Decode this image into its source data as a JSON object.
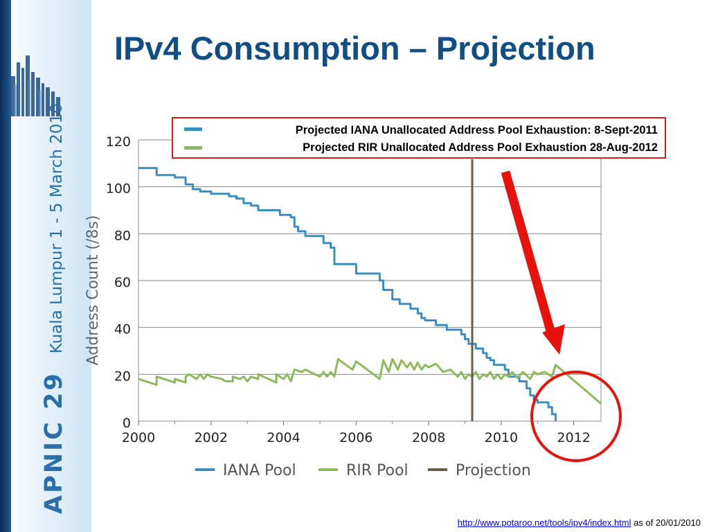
{
  "slide": {
    "title": "IPv4 Consumption – Projection",
    "sidebar": {
      "brand": "APNIC 29",
      "location_dates": "Kuala Lumpur   1 - 5 March 2010",
      "logo_icon": "city-skyline-icon",
      "accent_color": "#2a6fa8"
    },
    "footer": {
      "link_text": "http://www.potaroo.net/tools/ipv4/index.html",
      "suffix": "as of 20/01/2010"
    },
    "projection_box": {
      "line1": "Projected IANA Unallocated Address Pool Exhaustion:  8-Sept-2011",
      "line2": "Projected RIR Unallocated Address Pool Exhaustion 28-Aug-2012",
      "border_color": "#e01a1a"
    },
    "annotations": {
      "arrow_color": "#e8120c",
      "circle_color": "#e8120c"
    }
  },
  "chart_data": {
    "type": "line",
    "ylabel": "Address Count (/8s)",
    "xlabel": "",
    "xlim": [
      2000,
      2012.75
    ],
    "ylim": [
      0,
      120
    ],
    "xticks": [
      2000,
      2002,
      2004,
      2006,
      2008,
      2010,
      2012
    ],
    "yticks": [
      0,
      20,
      40,
      60,
      80,
      100,
      120
    ],
    "grid": "horizontal",
    "legend_position": "bottom",
    "series": [
      {
        "name": "IANA Pool",
        "color": "#3b8ec2",
        "step": true,
        "points": [
          [
            2000,
            108
          ],
          [
            2000.5,
            108
          ],
          [
            2000.5,
            105
          ],
          [
            2001,
            105
          ],
          [
            2001,
            104
          ],
          [
            2001.3,
            104
          ],
          [
            2001.3,
            101
          ],
          [
            2001.5,
            101
          ],
          [
            2001.5,
            99
          ],
          [
            2001.7,
            99
          ],
          [
            2001.7,
            98
          ],
          [
            2002,
            98
          ],
          [
            2002,
            97
          ],
          [
            2002.5,
            97
          ],
          [
            2002.5,
            96
          ],
          [
            2002.7,
            96
          ],
          [
            2002.7,
            95
          ],
          [
            2002.9,
            95
          ],
          [
            2002.9,
            93
          ],
          [
            2003.1,
            93
          ],
          [
            2003.1,
            92
          ],
          [
            2003.3,
            92
          ],
          [
            2003.3,
            90
          ],
          [
            2003.9,
            90
          ],
          [
            2003.9,
            88
          ],
          [
            2004.2,
            88
          ],
          [
            2004.2,
            87
          ],
          [
            2004.3,
            87
          ],
          [
            2004.3,
            83
          ],
          [
            2004.4,
            83
          ],
          [
            2004.4,
            81
          ],
          [
            2004.6,
            81
          ],
          [
            2004.6,
            79
          ],
          [
            2005.1,
            79
          ],
          [
            2005.1,
            76
          ],
          [
            2005.3,
            76
          ],
          [
            2005.3,
            74
          ],
          [
            2005.4,
            74
          ],
          [
            2005.4,
            67
          ],
          [
            2006,
            67
          ],
          [
            2006,
            63
          ],
          [
            2006.65,
            63
          ],
          [
            2006.65,
            60
          ],
          [
            2006.75,
            60
          ],
          [
            2006.75,
            56
          ],
          [
            2007,
            56
          ],
          [
            2007,
            52
          ],
          [
            2007.2,
            52
          ],
          [
            2007.2,
            50
          ],
          [
            2007.5,
            50
          ],
          [
            2007.5,
            48
          ],
          [
            2007.7,
            48
          ],
          [
            2007.7,
            46
          ],
          [
            2007.8,
            46
          ],
          [
            2007.8,
            44
          ],
          [
            2007.9,
            44
          ],
          [
            2007.9,
            43
          ],
          [
            2008.2,
            43
          ],
          [
            2008.2,
            41
          ],
          [
            2008.5,
            41
          ],
          [
            2008.5,
            39
          ],
          [
            2008.9,
            39
          ],
          [
            2008.9,
            37
          ],
          [
            2009,
            37
          ],
          [
            2009,
            35
          ],
          [
            2009.1,
            35
          ],
          [
            2009.1,
            33
          ],
          [
            2009.3,
            33
          ],
          [
            2009.3,
            31
          ],
          [
            2009.5,
            31
          ],
          [
            2009.5,
            29
          ],
          [
            2009.6,
            29
          ],
          [
            2009.6,
            27
          ],
          [
            2009.7,
            27
          ],
          [
            2009.7,
            26
          ],
          [
            2009.8,
            26
          ],
          [
            2009.8,
            24
          ],
          [
            2010.1,
            24
          ],
          [
            2010.1,
            22
          ],
          [
            2010.2,
            22
          ],
          [
            2010.2,
            19
          ],
          [
            2010.5,
            19
          ],
          [
            2010.5,
            17
          ],
          [
            2010.7,
            17
          ],
          [
            2010.7,
            14
          ],
          [
            2010.8,
            14
          ],
          [
            2010.8,
            11
          ],
          [
            2010.9,
            11
          ],
          [
            2010.9,
            9
          ],
          [
            2011,
            9
          ],
          [
            2011,
            8
          ],
          [
            2011.3,
            8
          ],
          [
            2011.3,
            6
          ],
          [
            2011.4,
            6
          ],
          [
            2011.4,
            3
          ],
          [
            2011.5,
            3
          ],
          [
            2011.5,
            0
          ]
        ]
      },
      {
        "name": "RIR Pool",
        "color": "#8fba5b",
        "step": false,
        "points": [
          [
            2000,
            18
          ],
          [
            2000.5,
            15.5
          ],
          [
            2000.5,
            19
          ],
          [
            2001,
            16.5
          ],
          [
            2001,
            18
          ],
          [
            2001.3,
            16.5
          ],
          [
            2001.3,
            19
          ],
          [
            2001.4,
            20
          ],
          [
            2001.6,
            18
          ],
          [
            2001.7,
            20
          ],
          [
            2001.8,
            18
          ],
          [
            2001.9,
            20
          ],
          [
            2002,
            19
          ],
          [
            2002.3,
            18
          ],
          [
            2002.4,
            17
          ],
          [
            2002.6,
            17
          ],
          [
            2002.6,
            19
          ],
          [
            2002.8,
            18
          ],
          [
            2002.9,
            19
          ],
          [
            2003,
            17
          ],
          [
            2003.1,
            19
          ],
          [
            2003.3,
            18
          ],
          [
            2003.3,
            20
          ],
          [
            2003.8,
            16.5
          ],
          [
            2003.8,
            20
          ],
          [
            2004,
            18
          ],
          [
            2004.1,
            20
          ],
          [
            2004.2,
            17
          ],
          [
            2004.3,
            22
          ],
          [
            2004.5,
            21
          ],
          [
            2004.6,
            22
          ],
          [
            2005,
            19
          ],
          [
            2005.1,
            21
          ],
          [
            2005.2,
            19
          ],
          [
            2005.3,
            21
          ],
          [
            2005.4,
            19
          ],
          [
            2005.5,
            26.5
          ],
          [
            2005.9,
            22
          ],
          [
            2006,
            25.5
          ],
          [
            2006.65,
            18
          ],
          [
            2006.75,
            26
          ],
          [
            2006.9,
            21
          ],
          [
            2007,
            26.5
          ],
          [
            2007.15,
            22
          ],
          [
            2007.25,
            26
          ],
          [
            2007.4,
            23
          ],
          [
            2007.5,
            25
          ],
          [
            2007.6,
            22
          ],
          [
            2007.7,
            25
          ],
          [
            2007.8,
            22
          ],
          [
            2007.9,
            24
          ],
          [
            2008,
            23
          ],
          [
            2008.2,
            24.5
          ],
          [
            2008.4,
            21
          ],
          [
            2008.6,
            22
          ],
          [
            2008.8,
            19
          ],
          [
            2008.9,
            21
          ],
          [
            2009,
            18
          ],
          [
            2009.1,
            20
          ],
          [
            2009.2,
            19
          ],
          [
            2009.3,
            21
          ],
          [
            2009.4,
            18
          ],
          [
            2009.5,
            20
          ],
          [
            2009.6,
            19
          ],
          [
            2009.7,
            21
          ],
          [
            2009.8,
            18
          ],
          [
            2009.9,
            20
          ],
          [
            2010,
            18
          ],
          [
            2010.1,
            20
          ],
          [
            2010.2,
            19
          ],
          [
            2010.3,
            21
          ],
          [
            2010.45,
            18.5
          ],
          [
            2010.6,
            21
          ],
          [
            2010.8,
            18
          ],
          [
            2010.9,
            21
          ],
          [
            2011,
            20
          ],
          [
            2011.2,
            21
          ],
          [
            2011.4,
            19
          ],
          [
            2011.5,
            24
          ],
          [
            2012.75,
            7.5
          ]
        ]
      },
      {
        "name": "Projection",
        "color": "#6b5b48",
        "vertical_line_x": 2009.2
      }
    ]
  }
}
